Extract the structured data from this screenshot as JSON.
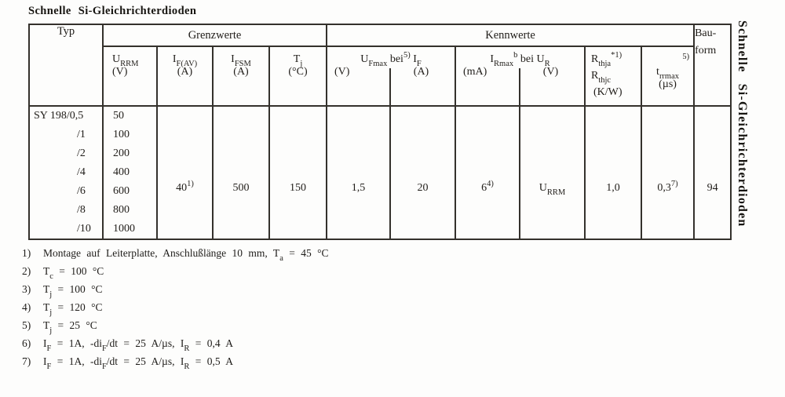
{
  "title": "Schnelle Si-Gleichrichterdioden",
  "edge_label": "Schnelle Si-Gleichrichterdioden",
  "table": {
    "headers": {
      "typ": "Typ",
      "grenzwerte": "Grenzwerte",
      "kennwerte": "Kennwerte",
      "bauform": [
        "Bau-",
        "form"
      ],
      "cols": {
        "urrm": {
          "sym": [
            [
              "U",
              ""
            ],
            [
              "RRM",
              "sub"
            ]
          ],
          "unit": "(V)"
        },
        "ifav": {
          "sym": [
            [
              "I",
              ""
            ],
            [
              "F(AV)",
              "sub"
            ]
          ],
          "unit": "(A)"
        },
        "ifsm": {
          "sym": [
            [
              "I",
              ""
            ],
            [
              "FSM",
              "sub"
            ]
          ],
          "unit": "(A)"
        },
        "tj": {
          "sym": [
            [
              "T",
              ""
            ],
            [
              "j",
              "sub"
            ]
          ],
          "unit": "(°C)"
        },
        "ufmax_if": {
          "sym": [
            [
              "U",
              ""
            ],
            [
              "Fmax",
              "sub"
            ],
            [
              " bei",
              ""
            ],
            [
              "5)",
              "sup"
            ],
            [
              " I",
              ""
            ],
            [
              "F",
              "sub"
            ]
          ],
          "unit_left": "(V)",
          "unit_right": "(A)"
        },
        "irmax_ur": {
          "sym": [
            [
              "I",
              ""
            ],
            [
              "Rmax",
              "sub"
            ],
            [
              "b",
              "sup"
            ],
            [
              " bei U",
              ""
            ],
            [
              "R",
              "sub"
            ]
          ],
          "unit_left": "(mA)",
          "unit_right": "(V)"
        },
        "rth": {
          "sym1": [
            [
              "R",
              ""
            ],
            [
              "thja",
              "sub"
            ],
            [
              "*1)",
              "sup"
            ]
          ],
          "sym2": [
            [
              "R",
              ""
            ],
            [
              "thjc",
              "sub"
            ]
          ],
          "unit": "(K/W)"
        },
        "trr": {
          "sym": [
            [
              "t",
              ""
            ],
            [
              "rrmax",
              "sub"
            ]
          ],
          "corner_sup": "5)",
          "unit": "(µs)"
        }
      }
    },
    "rows": [
      {
        "typ": "SY 198/0,5",
        "urrm": "50"
      },
      {
        "typ": "/1",
        "urrm": "100"
      },
      {
        "typ": "/2",
        "urrm": "200"
      },
      {
        "typ": "/4",
        "urrm": "400"
      },
      {
        "typ": "/6",
        "urrm": "600"
      },
      {
        "typ": "/8",
        "urrm": "800"
      },
      {
        "typ": "/10",
        "urrm": "1000"
      }
    ],
    "shared_values": {
      "ifav": [
        [
          "40",
          ""
        ],
        [
          "1)",
          "sup"
        ]
      ],
      "ifsm": [
        [
          "500",
          ""
        ]
      ],
      "tj": [
        [
          "150",
          ""
        ]
      ],
      "ufmax": [
        [
          "1,5",
          ""
        ]
      ],
      "if": [
        [
          "20",
          ""
        ]
      ],
      "irmax": [
        [
          "6",
          ""
        ],
        [
          "4)",
          "sup"
        ]
      ],
      "ur": [
        [
          "U",
          ""
        ],
        [
          "RRM",
          "sub"
        ]
      ],
      "rth": [
        [
          "1,0",
          ""
        ]
      ],
      "trr": [
        [
          "0,3",
          ""
        ],
        [
          "7)",
          "sup"
        ]
      ],
      "bauform": [
        [
          "94",
          ""
        ]
      ]
    }
  },
  "footnotes": [
    {
      "marker": "1)",
      "segments": [
        [
          "Montage auf Leiterplatte, Anschlußlänge 10 mm, T",
          ""
        ],
        [
          "a",
          "sub"
        ],
        [
          " = 45 °C",
          ""
        ]
      ]
    },
    {
      "marker": "2)",
      "segments": [
        [
          "T",
          ""
        ],
        [
          "c",
          "sub"
        ],
        [
          " = 100 °C",
          ""
        ]
      ]
    },
    {
      "marker": "3)",
      "segments": [
        [
          "T",
          ""
        ],
        [
          "j",
          "sub"
        ],
        [
          " = 100 °C",
          ""
        ]
      ]
    },
    {
      "marker": "4)",
      "segments": [
        [
          "T",
          ""
        ],
        [
          "j",
          "sub"
        ],
        [
          " = 120 °C",
          ""
        ]
      ]
    },
    {
      "marker": "5)",
      "segments": [
        [
          "T",
          ""
        ],
        [
          "j",
          "sub"
        ],
        [
          " = 25 °C",
          ""
        ]
      ]
    },
    {
      "marker": "6)",
      "segments": [
        [
          "I",
          ""
        ],
        [
          "F",
          "sub"
        ],
        [
          " = 1A, -di",
          ""
        ],
        [
          "F",
          "sub"
        ],
        [
          "/dt = 25 A/µs, I",
          ""
        ],
        [
          "R",
          "sub"
        ],
        [
          " = 0,4 A",
          ""
        ]
      ]
    },
    {
      "marker": "7)",
      "segments": [
        [
          "I",
          ""
        ],
        [
          "F",
          "sub"
        ],
        [
          " = 1A, -di",
          ""
        ],
        [
          "F",
          "sub"
        ],
        [
          "/dt = 25 A/µs, I",
          ""
        ],
        [
          "R",
          "sub"
        ],
        [
          " = 0,5 A",
          ""
        ]
      ]
    }
  ],
  "colors": {
    "ink": "#1e1c19",
    "paper": "#fdfdfc",
    "border": "#34312c"
  }
}
